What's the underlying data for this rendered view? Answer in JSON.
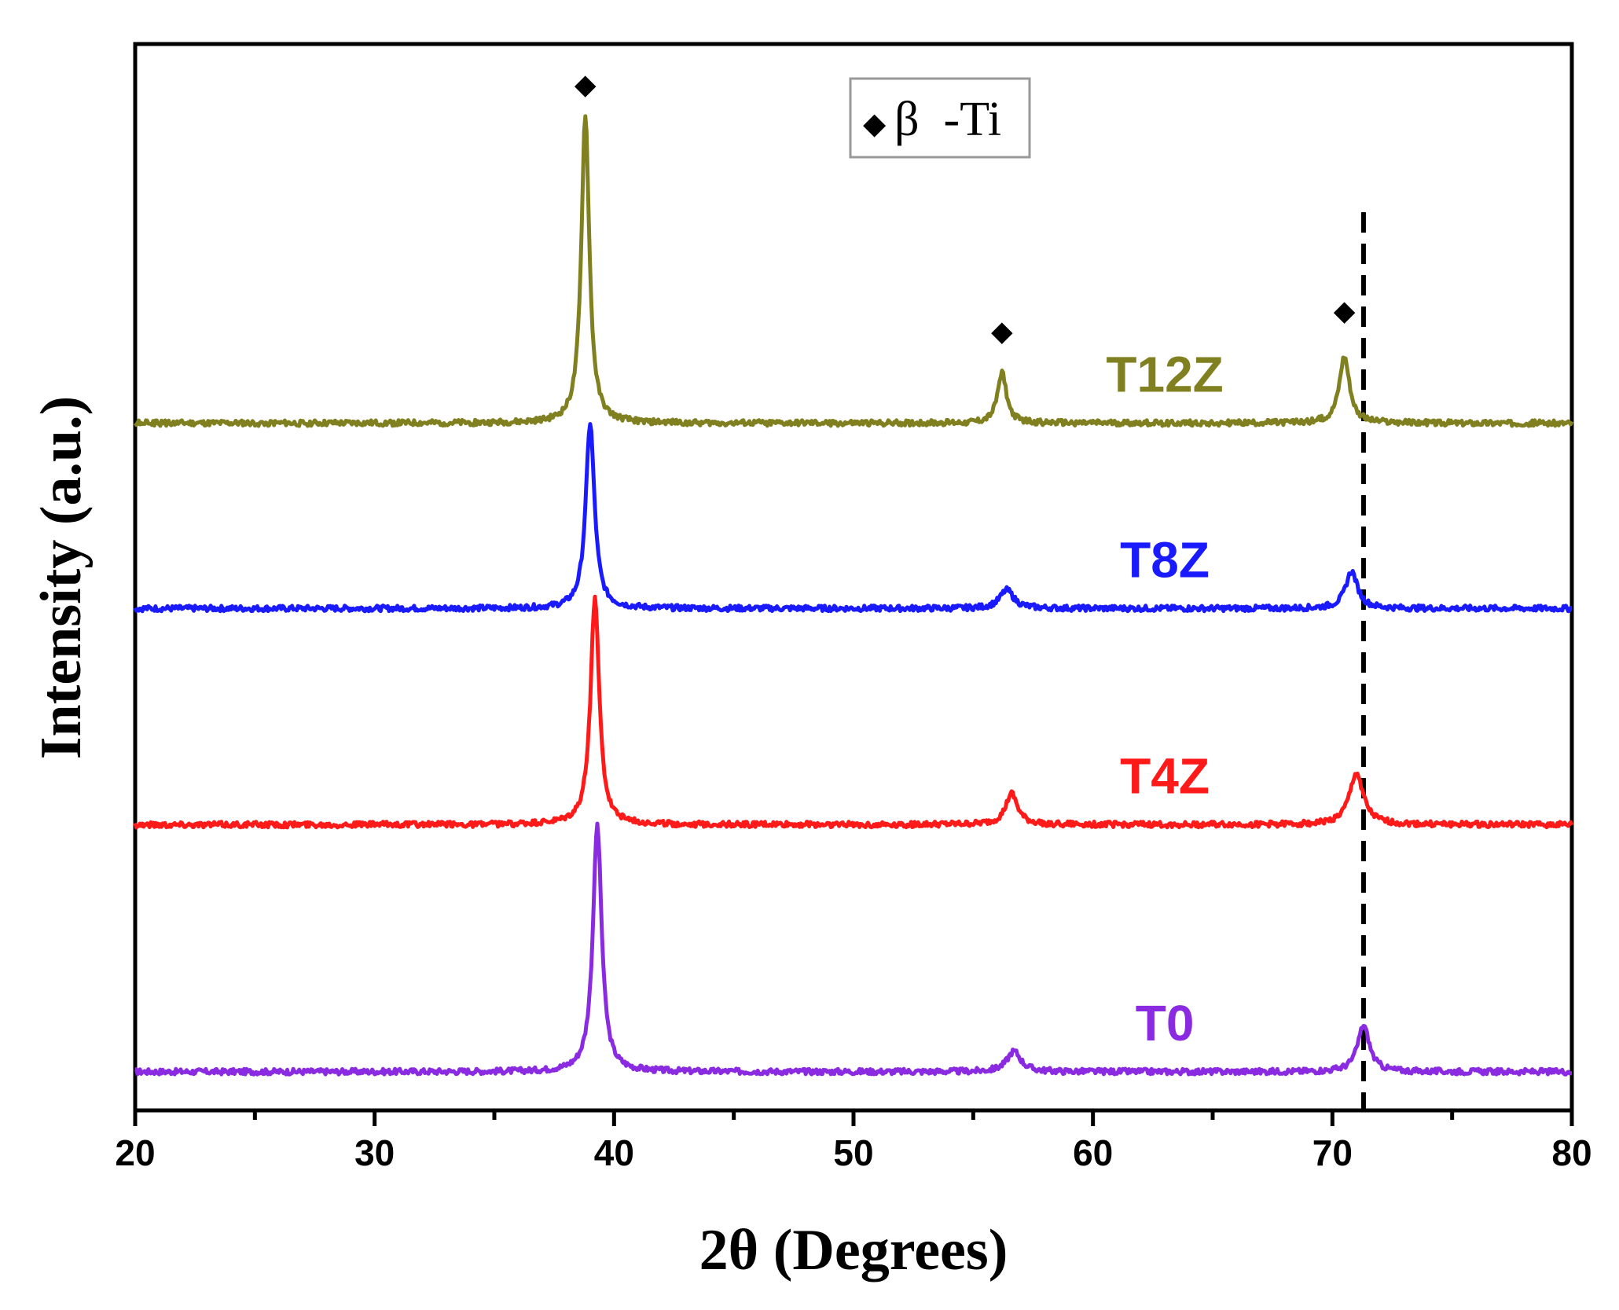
{
  "chart_data": {
    "type": "line",
    "title": "",
    "xlabel": "2θ (Degrees)",
    "ylabel": "Intensity (a.u.)",
    "xlim": [
      20,
      80
    ],
    "ylim": [
      0,
      100
    ],
    "xticks": [
      "20",
      "30",
      "40",
      "50",
      "60",
      "70",
      "80"
    ],
    "legend": {
      "marker": "◆",
      "label": "β  -Ti",
      "position": "top-center"
    },
    "reference_line": {
      "x": 71.3,
      "style": "dashed",
      "color": "#000000"
    },
    "series": [
      {
        "name": "T0",
        "color": "#8a2be2",
        "baseline": 2,
        "peaks": [
          {
            "x": 39.3,
            "h": 24,
            "w": 0.22
          },
          {
            "x": 56.7,
            "h": 2.0,
            "w": 0.35
          },
          {
            "x": 71.3,
            "h": 4.5,
            "w": 0.3
          }
        ]
      },
      {
        "name": "T4Z",
        "color": "#ff1a1a",
        "baseline": 26,
        "peaks": [
          {
            "x": 39.2,
            "h": 22,
            "w": 0.22
          },
          {
            "x": 56.6,
            "h": 3.0,
            "w": 0.3
          },
          {
            "x": 71.0,
            "h": 5.0,
            "w": 0.35
          }
        ]
      },
      {
        "name": "T8Z",
        "color": "#1a1aff",
        "baseline": 47,
        "peaks": [
          {
            "x": 39.0,
            "h": 18,
            "w": 0.22
          },
          {
            "x": 56.4,
            "h": 1.8,
            "w": 0.35
          },
          {
            "x": 70.8,
            "h": 3.6,
            "w": 0.3
          }
        ]
      },
      {
        "name": "T12Z",
        "color": "#808020",
        "baseline": 65,
        "peaks": [
          {
            "x": 38.8,
            "h": 30,
            "w": 0.2
          },
          {
            "x": 56.2,
            "h": 5.0,
            "w": 0.22
          },
          {
            "x": 70.5,
            "h": 6.5,
            "w": 0.26
          }
        ]
      }
    ],
    "peak_markers": [
      {
        "x": 38.8,
        "y": 97,
        "symbol": "◆"
      },
      {
        "x": 56.2,
        "y": 73,
        "symbol": "◆"
      },
      {
        "x": 70.5,
        "y": 75,
        "symbol": "◆"
      }
    ]
  }
}
